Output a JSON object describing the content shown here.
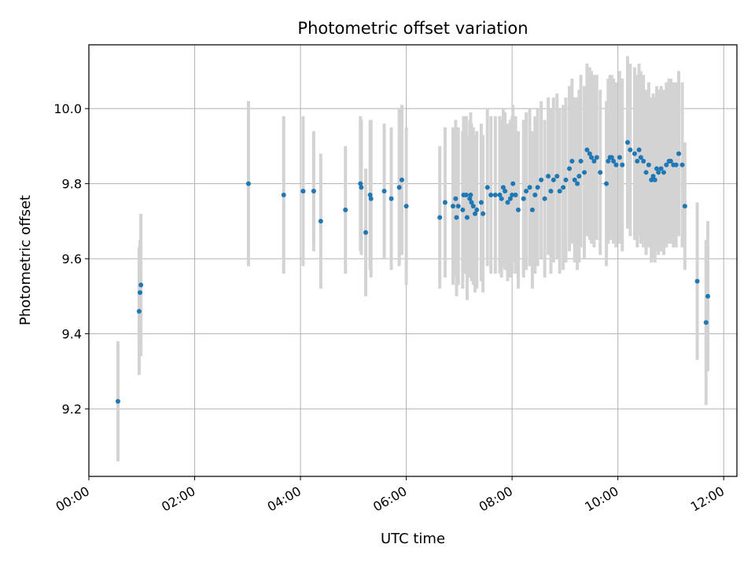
{
  "chart_data": {
    "type": "scatter",
    "title": "Photometric offset variation",
    "xlabel": "UTC time",
    "ylabel": "Photometric offset",
    "x_axis_kind": "time",
    "xlim": [
      "00:00",
      "12:15"
    ],
    "ylim": [
      9.02,
      10.17
    ],
    "xticks": [
      "00:00",
      "02:00",
      "04:00",
      "06:00",
      "08:00",
      "10:00",
      "12:00"
    ],
    "yticks": [
      9.2,
      9.4,
      9.6,
      9.8,
      10.0
    ],
    "grid": true,
    "legend": "none",
    "colors": {
      "point": "#1f77b4",
      "errorbar": "#d3d3d3",
      "grid": "#b0b0b0"
    },
    "series": [
      {
        "x": [
          "00:33",
          "00:57",
          "00:58",
          "00:59",
          "03:01",
          "03:41",
          "04:03",
          "04:15",
          "04:23",
          "04:51",
          "05:08",
          "05:09",
          "05:14",
          "05:19",
          "05:20",
          "05:35",
          "05:43",
          "05:52",
          "05:55",
          "06:00",
          "06:38",
          "06:44",
          "06:53",
          "06:56",
          "06:57",
          "06:59",
          "07:04",
          "07:05",
          "07:08",
          "07:09",
          "07:12",
          "07:13",
          "07:14",
          "07:16",
          "07:18",
          "07:20",
          "07:25",
          "07:27",
          "07:32",
          "07:36",
          "07:41",
          "07:46",
          "07:48",
          "07:50",
          "07:52",
          "07:55",
          "07:58",
          "08:00",
          "08:01",
          "08:04",
          "08:07",
          "08:13",
          "08:16",
          "08:20",
          "08:23",
          "08:26",
          "08:29",
          "08:33",
          "08:37",
          "08:41",
          "08:44",
          "08:47",
          "08:51",
          "08:54",
          "08:58",
          "09:01",
          "09:05",
          "09:08",
          "09:11",
          "09:14",
          "09:16",
          "09:18",
          "09:22",
          "09:25",
          "09:28",
          "09:30",
          "09:33",
          "09:36",
          "09:40",
          "09:47",
          "09:49",
          "09:51",
          "09:53",
          "09:55",
          "09:58",
          "10:02",
          "10:05",
          "10:11",
          "10:14",
          "10:19",
          "10:22",
          "10:24",
          "10:26",
          "10:29",
          "10:32",
          "10:35",
          "10:38",
          "10:40",
          "10:42",
          "10:44",
          "10:46",
          "10:49",
          "10:52",
          "10:55",
          "10:58",
          "11:00",
          "11:03",
          "11:06",
          "11:09",
          "11:13",
          "11:16",
          "11:30",
          "11:40",
          "11:42"
        ],
        "y": [
          9.22,
          9.46,
          9.51,
          9.53,
          9.8,
          9.77,
          9.78,
          9.78,
          9.7,
          9.73,
          9.8,
          9.79,
          9.67,
          9.77,
          9.76,
          9.78,
          9.76,
          9.79,
          9.81,
          9.74,
          9.71,
          9.75,
          9.74,
          9.76,
          9.71,
          9.74,
          9.73,
          9.77,
          9.77,
          9.71,
          9.76,
          9.77,
          9.75,
          9.74,
          9.72,
          9.73,
          9.75,
          9.72,
          9.79,
          9.77,
          9.77,
          9.77,
          9.76,
          9.79,
          9.78,
          9.75,
          9.76,
          9.77,
          9.8,
          9.77,
          9.73,
          9.76,
          9.78,
          9.79,
          9.73,
          9.77,
          9.79,
          9.81,
          9.76,
          9.82,
          9.78,
          9.81,
          9.82,
          9.78,
          9.79,
          9.81,
          9.84,
          9.86,
          9.81,
          9.8,
          9.82,
          9.86,
          9.83,
          9.89,
          9.88,
          9.87,
          9.86,
          9.87,
          9.83,
          9.8,
          9.86,
          9.87,
          9.87,
          9.86,
          9.85,
          9.87,
          9.85,
          9.91,
          9.89,
          9.88,
          9.86,
          9.89,
          9.87,
          9.86,
          9.83,
          9.85,
          9.81,
          9.82,
          9.81,
          9.84,
          9.83,
          9.84,
          9.83,
          9.85,
          9.86,
          9.86,
          9.85,
          9.85,
          9.88,
          9.85,
          9.74,
          9.54,
          9.43,
          9.5
        ],
        "yerr": [
          0.16,
          0.17,
          0.14,
          0.19,
          0.22,
          0.21,
          0.2,
          0.16,
          0.18,
          0.17,
          0.18,
          0.18,
          0.17,
          0.2,
          0.21,
          0.18,
          0.19,
          0.21,
          0.2,
          0.21,
          0.19,
          0.2,
          0.21,
          0.21,
          0.21,
          0.21,
          0.21,
          0.21,
          0.21,
          0.22,
          0.21,
          0.22,
          0.21,
          0.21,
          0.21,
          0.21,
          0.21,
          0.21,
          0.21,
          0.21,
          0.21,
          0.21,
          0.21,
          0.21,
          0.21,
          0.21,
          0.21,
          0.21,
          0.21,
          0.21,
          0.21,
          0.21,
          0.21,
          0.21,
          0.21,
          0.21,
          0.21,
          0.21,
          0.21,
          0.21,
          0.22,
          0.22,
          0.22,
          0.22,
          0.22,
          0.22,
          0.22,
          0.22,
          0.22,
          0.23,
          0.23,
          0.23,
          0.23,
          0.23,
          0.23,
          0.23,
          0.23,
          0.22,
          0.22,
          0.22,
          0.22,
          0.22,
          0.22,
          0.22,
          0.22,
          0.23,
          0.23,
          0.23,
          0.23,
          0.23,
          0.23,
          0.23,
          0.23,
          0.23,
          0.22,
          0.22,
          0.22,
          0.22,
          0.22,
          0.22,
          0.22,
          0.22,
          0.22,
          0.22,
          0.22,
          0.22,
          0.22,
          0.22,
          0.22,
          0.22,
          0.17,
          0.21,
          0.22,
          0.2
        ]
      }
    ]
  }
}
